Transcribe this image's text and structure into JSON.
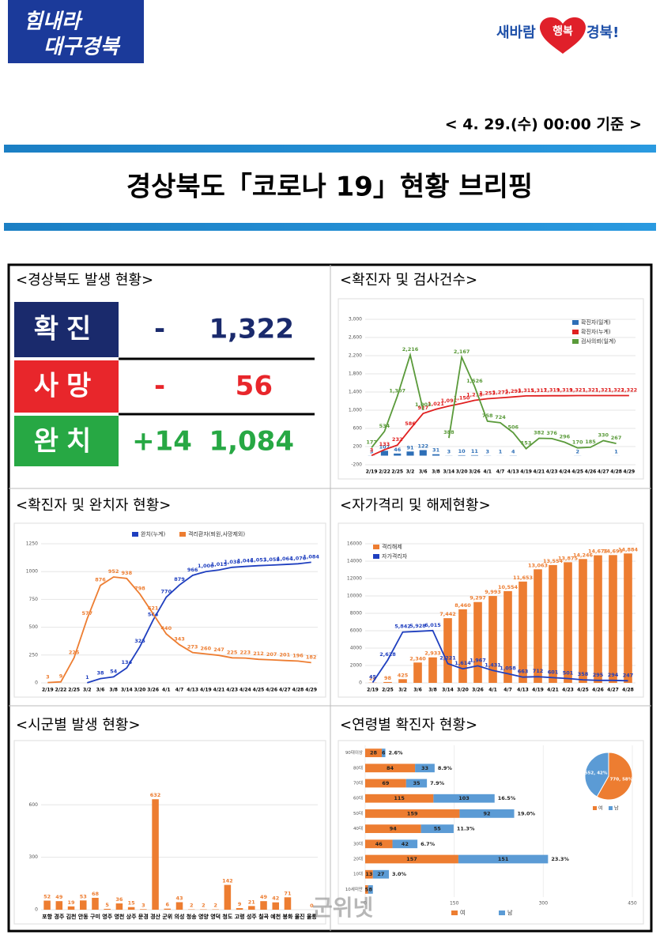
{
  "header": {
    "left_logo": [
      "힘내라",
      "대구경북"
    ],
    "right_logo": [
      "새바람",
      "행복",
      "경북!"
    ]
  },
  "date": "< 4. 29.(수) 00:00 기준 >",
  "title": "경상북도「코로나 19」현황 브리핑",
  "summary": {
    "title": "<경상북도 발생 현황>",
    "rows": [
      {
        "label": "확진",
        "change": "-",
        "total": "1,322"
      },
      {
        "label": "사망",
        "change": "-",
        "total": "56"
      },
      {
        "label": "완치",
        "change": "+14",
        "total": "1,084"
      }
    ]
  },
  "watermark": "군위넷",
  "chart_data": [
    {
      "type": "combo",
      "title": "<확진자 및 검사건수>",
      "legend": "upper right",
      "grid": true,
      "categories": [
        "2/19",
        "2/22",
        "2/25",
        "3/2",
        "3/6",
        "3/8",
        "3/14",
        "3/20",
        "3/26",
        "4/1",
        "4/7",
        "4/13",
        "4/19",
        "4/21",
        "4/23",
        "4/24",
        "4/25",
        "4/26",
        "4/27",
        "4/28",
        "4/29"
      ],
      "ylim": [
        -200,
        3000
      ],
      "yticks": [
        -200,
        200,
        600,
        {
          "value": 1000,
          "label": "1,000"
        },
        {
          "value": 1400,
          "label": "1,400"
        },
        {
          "value": 1800,
          "label": "1,800"
        },
        {
          "value": 2200,
          "label": "2,200"
        },
        {
          "value": 2600,
          "label": "2,600"
        },
        {
          "value": 3000,
          "label": "3,000"
        }
      ],
      "series": [
        {
          "name": "확진자(일계)",
          "kind": "bar",
          "color": "#2e6fb7",
          "values": [
            3,
            107,
            46,
            91,
            122,
            31,
            3,
            10,
            11,
            3,
            1,
            4,
            null,
            null,
            null,
            null,
            2,
            null,
            null,
            1,
            null
          ]
        },
        {
          "name": "확진자(누계)",
          "kind": "line",
          "color": "#e02020",
          "values": [
            3,
            133,
            232,
            586,
            927,
            1021,
            1091,
            1150,
            1218,
            1253,
            1272,
            1293,
            1315,
            1317,
            1319,
            1319,
            1321,
            1321,
            1321,
            1322,
            1322
          ],
          "value_labels": [
            "3",
            "133",
            "232",
            "586",
            "927",
            "1,021",
            "1,091",
            "1,150",
            "1,218",
            "1,253",
            "1,272",
            "1,293",
            "1,315",
            "1,317",
            "1,319",
            "1,319",
            "1,321",
            "1,321",
            "1,321",
            "1,322",
            "1,322"
          ]
        },
        {
          "name": "검사의뢰(일계)",
          "kind": "line",
          "color": "#5a9a3a",
          "values": [
            177,
            534,
            1307,
            2216,
            1003,
            null,
            388,
            2167,
            1526,
            758,
            724,
            506,
            153,
            382,
            376,
            296,
            170,
            185,
            330,
            267,
            null
          ],
          "value_labels": [
            "177",
            "534",
            "1,307",
            "2,216",
            "1,003",
            null,
            "388",
            "2,167",
            "1,526",
            "758",
            "724",
            "506",
            "153",
            "382",
            "376",
            "296",
            "170",
            "185",
            "330",
            "267",
            null
          ]
        }
      ]
    },
    {
      "type": "line",
      "title": "<확진자 및 완치자 현황>",
      "legend": "upper center",
      "grid": true,
      "categories": [
        "2/19",
        "2/22",
        "2/25",
        "3/2",
        "3/6",
        "3/8",
        "3/14",
        "3/20",
        "3/26",
        "4/1",
        "4/7",
        "4/13",
        "4/19",
        "4/21",
        "4/23",
        "4/24",
        "4/25",
        "4/26",
        "4/27",
        "4/28",
        "4/29"
      ],
      "ylim": [
        0,
        1250
      ],
      "yticks": [
        0,
        250,
        500,
        750,
        1000,
        1250
      ],
      "series": [
        {
          "name": "완치(누계)",
          "color": "#1f3fbf",
          "values": [
            null,
            null,
            null,
            1,
            38,
            54,
            134,
            325,
            564,
            770,
            879,
            966,
            1000,
            1015,
            1038,
            1046,
            1053,
            1058,
            1064,
            1070,
            1084
          ],
          "value_labels": [
            null,
            null,
            null,
            "1",
            "38",
            "54",
            "134",
            "325",
            "564",
            "770",
            "879",
            "966",
            "1,000",
            "1,015",
            "1,038",
            "1,046",
            "1,053",
            "1,058",
            "1,064",
            "1,070",
            "1,084"
          ]
        },
        {
          "name": "격리환자(퇴원,사망제외)",
          "color": "#ed7d31",
          "values": [
            3,
            9,
            225,
            577,
            876,
            952,
            938,
            798,
            621,
            440,
            343,
            273,
            260,
            247,
            225,
            223,
            212,
            207,
            201,
            196,
            182
          ]
        }
      ]
    },
    {
      "type": "combo",
      "title": "<자가격리 및 해제현황>",
      "legend": "upper left",
      "grid": true,
      "categories": [
        "2/19",
        "2/25",
        "3/2",
        "3/6",
        "3/8",
        "3/14",
        "3/20",
        "3/26",
        "4/1",
        "4/7",
        "4/13",
        "4/19",
        "4/21",
        "4/23",
        "4/25",
        "4/26",
        "4/27",
        "4/28"
      ],
      "ylim": [
        0,
        16000
      ],
      "yticks": [
        0,
        2000,
        4000,
        6000,
        8000,
        10000,
        12000,
        14000,
        16000
      ],
      "series": [
        {
          "name": "격리해제",
          "kind": "bar",
          "color": "#ed7d31",
          "values": [
            24,
            98,
            425,
            2340,
            2933,
            7442,
            8460,
            9297,
            9993,
            10554,
            11653,
            13063,
            13554,
            13875,
            14246,
            14676,
            14699,
            14884
          ],
          "value_labels": [
            "24",
            "98",
            "425",
            "2,340",
            "2,933",
            "7,442",
            "8,460",
            "9,297",
            "9,993",
            "10,554",
            "11,653",
            "13,063",
            "13,554",
            "13,875",
            "14,246",
            "14,676",
            "14,699",
            "14,884"
          ]
        },
        {
          "name": "자가격리자",
          "kind": "line",
          "color": "#1f3fbf",
          "values": [
            45,
            2628,
            5842,
            5928,
            6015,
            2221,
            1614,
            1967,
            1431,
            1058,
            663,
            712,
            601,
            501,
            358,
            295,
            294,
            247
          ],
          "value_labels": [
            "45",
            "2,628",
            "5,842",
            "5,928",
            "6,015",
            "2,221",
            "1,614",
            "1,967",
            "1,431",
            "1,058",
            "663",
            "712",
            "601",
            "501",
            "358",
            "295",
            "294",
            "247"
          ]
        }
      ]
    },
    {
      "type": "bar",
      "title": "<시군별 발생 현황>",
      "grid": true,
      "color": "#ed7d31",
      "categories": [
        "포항",
        "경주",
        "김천",
        "안동",
        "구미",
        "영주",
        "영천",
        "상주",
        "문경",
        "경산",
        "군위",
        "의성",
        "청송",
        "영양",
        "영덕",
        "청도",
        "고령",
        "성주",
        "칠곡",
        "예천",
        "봉화",
        "울진",
        "울릉"
      ],
      "values": [
        52,
        49,
        19,
        53,
        68,
        5,
        36,
        15,
        3,
        632,
        6,
        43,
        2,
        2,
        2,
        142,
        9,
        21,
        49,
        42,
        71,
        null,
        0
      ],
      "ylim": [
        0,
        850
      ],
      "yticks": [
        0,
        300,
        600
      ]
    },
    {
      "type": "hbar",
      "title": "<연령별 확진자 현황>",
      "legend": "lower center",
      "grid": true,
      "categories": [
        "90대이상",
        "80대",
        "70대",
        "60대",
        "50대",
        "40대",
        "30대",
        "20대",
        "10대",
        "10세미만"
      ],
      "xlim": [
        0,
        450
      ],
      "xticks": [
        0,
        150,
        300,
        450
      ],
      "series": [
        {
          "name": "여",
          "color": "#ed7d31",
          "values": [
            28,
            84,
            69,
            115,
            159,
            94,
            46,
            157,
            13,
            5
          ]
        },
        {
          "name": "남",
          "color": "#5b9bd5",
          "values": [
            6,
            33,
            35,
            103,
            92,
            55,
            42,
            151,
            27,
            8
          ]
        }
      ],
      "share_labels": [
        "2.6%",
        "8.9%",
        "7.9%",
        "16.5%",
        "19.0%",
        "11.3%",
        "6.7%",
        "23.3%",
        "3.0%",
        null
      ]
    },
    {
      "type": "pie",
      "categories": [
        "여",
        "남"
      ],
      "colors": [
        "#ed7d31",
        "#5b9bd5"
      ],
      "values": [
        770,
        552
      ],
      "value_labels": [
        "770, 58%",
        "552, 42%"
      ]
    }
  ]
}
